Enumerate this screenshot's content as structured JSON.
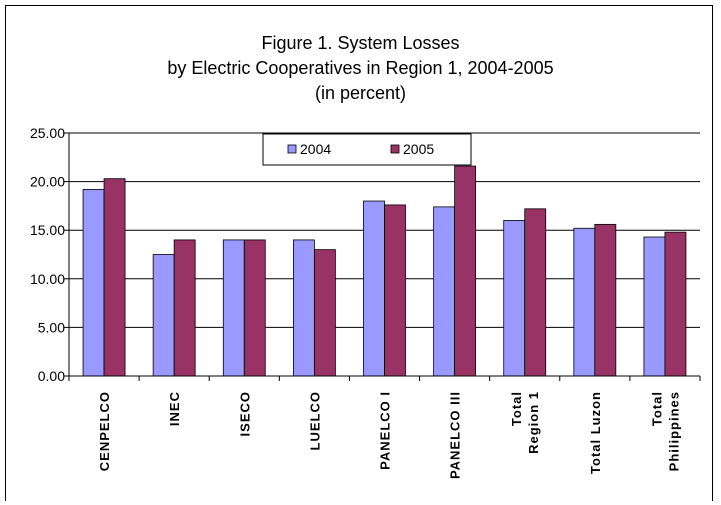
{
  "chart_data": {
    "type": "bar",
    "title_lines": [
      "Figure 1. System Losses",
      "by Electric Cooperatives in Region 1, 2004-2005",
      "(in percent)"
    ],
    "categories": [
      [
        "CENPELCO"
      ],
      [
        "INEC"
      ],
      [
        "ISECO"
      ],
      [
        "LUELCO"
      ],
      [
        "PANELCO I"
      ],
      [
        "PANELCO III"
      ],
      [
        "Total",
        "Region 1"
      ],
      [
        "Total Luzon"
      ],
      [
        "Total",
        "Philippines"
      ]
    ],
    "series": [
      {
        "name": "2004",
        "color": "#9999ff",
        "values": [
          19.2,
          12.5,
          14.0,
          14.0,
          18.0,
          17.4,
          16.0,
          15.2,
          14.3
        ]
      },
      {
        "name": "2005",
        "color": "#993366",
        "values": [
          20.3,
          14.0,
          14.0,
          13.0,
          17.6,
          21.6,
          17.2,
          15.6,
          14.8
        ]
      }
    ],
    "ylim": [
      0,
      25
    ],
    "yticks": [
      "0.00",
      "5.00",
      "10.00",
      "15.00",
      "20.00",
      "25.00"
    ],
    "grid": true,
    "legend_position": "top-center"
  }
}
